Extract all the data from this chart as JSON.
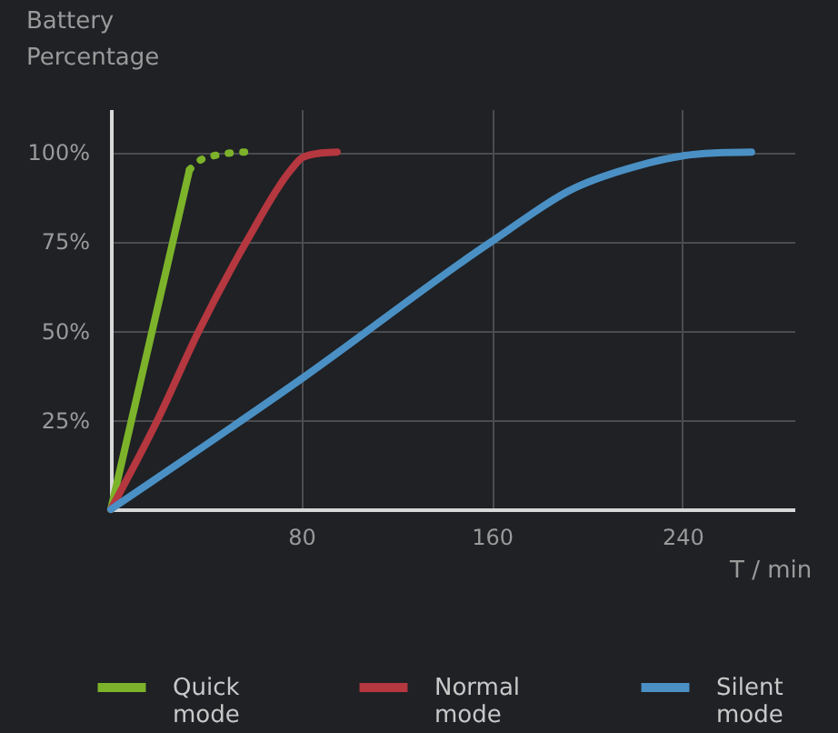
{
  "chart_data": {
    "type": "line",
    "xlabel": "T / min",
    "ylabel": "Battery Percentage",
    "xlim": [
      0,
      287
    ],
    "xticks": [
      80,
      160,
      240
    ],
    "ylim": [
      0,
      112
    ],
    "yticks": [
      {
        "value": 25,
        "label": "25%"
      },
      {
        "value": 50,
        "label": "50%"
      },
      {
        "value": 75,
        "label": "75%"
      },
      {
        "value": 100,
        "label": "100%"
      }
    ],
    "grid": true,
    "legend": "bottom",
    "line_style": "solid",
    "series": [
      {
        "name": "Quick mode",
        "color": "#7cb32a",
        "x": [
          0,
          33
        ],
        "values": [
          0,
          95
        ]
      },
      {
        "color": "#7cb32a",
        "line_style": "dotted",
        "x": [
          33,
          37,
          43.5,
          50,
          56.5
        ],
        "values": [
          95,
          97.5,
          99,
          99.7,
          100
        ]
      },
      {
        "name": "Normal mode",
        "color": "#b5373f",
        "x": [
          0,
          19.6,
          37,
          57,
          75.6,
          80.5,
          88,
          95
        ],
        "values": [
          0,
          25,
          50,
          75,
          95,
          98.5,
          99.7,
          100
        ]
      },
      {
        "name": "Silent mode",
        "color": "#4a90c4",
        "x": [
          0,
          80,
          160,
          195,
          220.6,
          241,
          255,
          269
        ],
        "values": [
          0,
          36.5,
          75,
          90,
          96,
          99,
          99.8,
          100
        ]
      }
    ]
  }
}
